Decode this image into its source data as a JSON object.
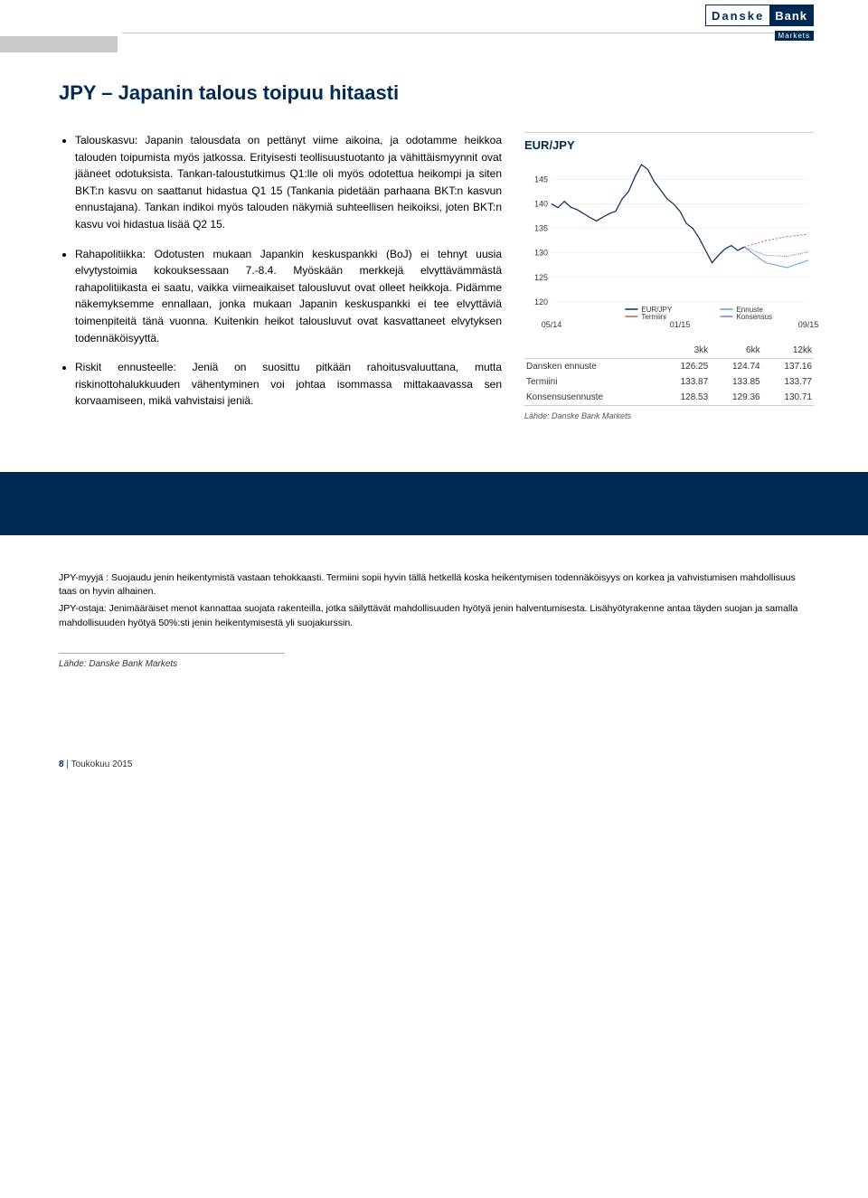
{
  "logo": {
    "part1": "Danske",
    "part2": "Bank",
    "sub": "Markets"
  },
  "title": "JPY – Japanin talous toipuu hitaasti",
  "bullet1": "Talouskasvu: Japanin talousdata on pettänyt viime aikoina, ja odotamme heikkoa talouden toipumista myös jatkossa. Erityisesti teollisuustuotanto ja vähittäismyynnit ovat jääneet odotuksista. Tankan-taloustutkimus Q1:lle oli myös odotettua heikompi ja siten BKT:n kasvu on saattanut hidastua Q1 15 (Tankania pidetään parhaana BKT:n kasvun ennustajana). Tankan indikoi myös talouden näkymiä suhteellisen heikoiksi, joten BKT:n kasvu voi hidastua lisää Q2 15.",
  "bullet2": "Rahapolitiikka: Odotusten mukaan Japankin keskuspankki (BoJ) ei tehnyt uusia elvytystoimia kokouksessaan 7.-8.4. Myöskään merkkejä elvyttävämmästä rahapolitiikasta ei saatu, vaikka viimeaikaiset talousluvut ovat olleet heikkoja. Pidämme näkemyksemme ennallaan, jonka mukaan Japanin keskuspankki ei tee elvyttäviä toimenpiteitä tänä vuonna. Kuitenkin heikot talousluvut ovat kasvattaneet elvytyksen todennäköisyyttä.",
  "bullet3": "Riskit ennusteelle: Jeniä on suosittu pitkään rahoitusvaluuttana, mutta riskinottohalukkuuden vähentyminen voi johtaa isommassa mittakaavassa sen korvaamiseen, mikä vahvistaisi jeniä.",
  "chart": {
    "title": "EUR/JPY",
    "ymin": 120,
    "ymax": 148,
    "yticks": [
      120,
      125,
      130,
      135,
      140,
      145
    ],
    "xmin": 0,
    "xmax": 12,
    "xlabels": [
      {
        "x": 0,
        "t": "05/14"
      },
      {
        "x": 6,
        "t": "01/15"
      },
      {
        "x": 12,
        "t": "09/15"
      }
    ],
    "series_eurjpy": {
      "color": "#002a54",
      "width": 1.2,
      "pts": [
        [
          0,
          140
        ],
        [
          0.3,
          139.2
        ],
        [
          0.6,
          140.5
        ],
        [
          0.9,
          139.3
        ],
        [
          1.2,
          138.8
        ],
        [
          1.5,
          138.0
        ],
        [
          1.8,
          137.2
        ],
        [
          2.1,
          136.5
        ],
        [
          2.4,
          137.3
        ],
        [
          2.7,
          138.0
        ],
        [
          3.0,
          138.5
        ],
        [
          3.3,
          141.0
        ],
        [
          3.6,
          142.5
        ],
        [
          3.9,
          145.5
        ],
        [
          4.2,
          148.0
        ],
        [
          4.5,
          147.0
        ],
        [
          4.8,
          144.5
        ],
        [
          5.1,
          142.8
        ],
        [
          5.4,
          141.0
        ],
        [
          5.7,
          140.0
        ],
        [
          6.0,
          138.5
        ],
        [
          6.3,
          136.0
        ],
        [
          6.6,
          135.0
        ],
        [
          6.9,
          133.0
        ],
        [
          7.2,
          130.5
        ],
        [
          7.5,
          128.0
        ],
        [
          7.8,
          129.5
        ],
        [
          8.1,
          130.8
        ],
        [
          8.4,
          131.5
        ],
        [
          8.7,
          130.5
        ],
        [
          9.0,
          131.2
        ]
      ]
    },
    "series_termiini": {
      "color": "#d05a5a",
      "width": 1.0,
      "dash": "2,2",
      "pts": [
        [
          9.0,
          131.2
        ],
        [
          10.0,
          132.5
        ],
        [
          11.0,
          133.3
        ],
        [
          12.0,
          133.8
        ]
      ]
    },
    "series_ennuste": {
      "color": "#5aa0d0",
      "width": 1.0,
      "pts": [
        [
          9.0,
          131.2
        ],
        [
          10.0,
          128.0
        ],
        [
          11.0,
          127.0
        ],
        [
          12.0,
          128.5
        ]
      ]
    },
    "series_konsensus": {
      "color": "#8878c0",
      "width": 1.0,
      "dash": "1,1",
      "pts": [
        [
          9.0,
          131.2
        ],
        [
          10.0,
          129.5
        ],
        [
          11.0,
          129.3
        ],
        [
          12.0,
          130.2
        ]
      ]
    },
    "legend": [
      {
        "label": "EUR/JPY",
        "color": "#002a54"
      },
      {
        "label": "Termiini",
        "color": "#d05a5a"
      },
      {
        "label": "Ennuste",
        "color": "#5aa0d0"
      },
      {
        "label": "Konsensus",
        "color": "#8878c0"
      }
    ]
  },
  "table": {
    "cols": [
      "",
      "3kk",
      "6kk",
      "12kk"
    ],
    "rows": [
      [
        "Dansken ennuste",
        "126.25",
        "124.74",
        "137.16"
      ],
      [
        "Termiini",
        "133.87",
        "133.85",
        "133.77"
      ],
      [
        "Konsensusennuste",
        "128.53",
        "129.36",
        "130.71"
      ]
    ],
    "source": "Lähde: Danske Bank Markets"
  },
  "footer": {
    "p1": "JPY-myyjä : Suojaudu jenin heikentymistä vastaan tehokkaasti. Termiini sopii hyvin tällä hetkellä koska heikentymisen todennäköisyys on korkea ja vahvistumisen mahdollisuus taas on hyvin alhainen.",
    "p2": "JPY-ostaja: Jenimääräiset menot kannattaa suojata rakenteilla, jotka säilyttävät mahdollisuuden hyötyä jenin halventumisesta. Lisähyötyrakenne antaa täyden suojan ja samalla mahdollisuuden hyötyä 50%:sti jenin heikentymisestä yli suojakurssin.",
    "source": "Lähde: Danske Bank Markets"
  },
  "pagefoot": {
    "n": "8",
    "sep": "|",
    "month": "Toukokuu 2015"
  }
}
